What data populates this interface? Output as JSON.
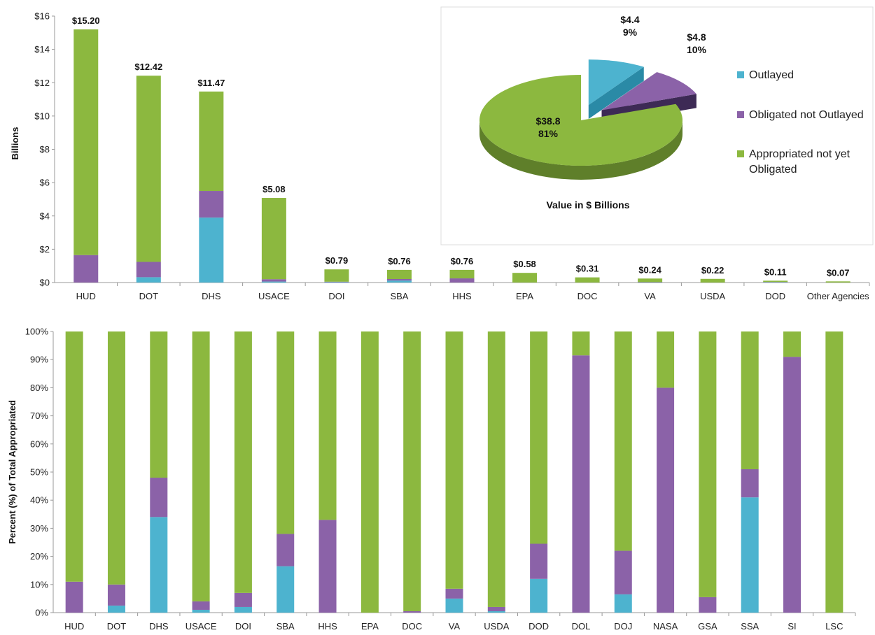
{
  "colors": {
    "outlayed": "#4db3cf",
    "obligated": "#8b62a8",
    "appropriated": "#8cb83f"
  },
  "chart_data": [
    {
      "type": "bar",
      "stacked": true,
      "ylabel": "Billions",
      "ylim": [
        0,
        16
      ],
      "yticks": [
        "$0",
        "$2",
        "$4",
        "$6",
        "$8",
        "$10",
        "$12",
        "$14",
        "$16"
      ],
      "categories": [
        "HUD",
        "DOT",
        "DHS",
        "USACE",
        "DOI",
        "SBA",
        "HHS",
        "EPA",
        "DOC",
        "VA",
        "USDA",
        "DOD",
        "Other Agencies"
      ],
      "totals_labels": [
        "$15.20",
        "$12.42",
        "$11.47",
        "$5.08",
        "$0.79",
        "$0.76",
        "$0.76",
        "$0.58",
        "$0.31",
        "$0.24",
        "$0.22",
        "$0.11",
        "$0.07"
      ],
      "series": [
        {
          "name": "Outlayed",
          "values": [
            0.0,
            0.32,
            3.9,
            0.06,
            0.02,
            0.12,
            0.0,
            0.0,
            0.0,
            0.01,
            0.0,
            0.01,
            0.0
          ]
        },
        {
          "name": "Obligated not Outlayed",
          "values": [
            1.65,
            0.92,
            1.6,
            0.14,
            0.03,
            0.09,
            0.25,
            0.0,
            0.0,
            0.01,
            0.0,
            0.02,
            0.0
          ]
        },
        {
          "name": "Appropriated not yet Obligated",
          "values": [
            13.55,
            11.18,
            5.97,
            4.88,
            0.74,
            0.55,
            0.51,
            0.58,
            0.31,
            0.22,
            0.22,
            0.08,
            0.07
          ]
        }
      ]
    },
    {
      "type": "pie",
      "title": "Value in $ Billions",
      "slices": [
        {
          "name": "Outlayed",
          "value": 4.4,
          "label": "$4.4",
          "pct": "9%"
        },
        {
          "name": "Obligated not Outlayed",
          "value": 4.8,
          "label": "$4.8",
          "pct": "10%"
        },
        {
          "name": "Appropriated not yet Obligated",
          "value": 38.8,
          "label": "$38.8",
          "pct": "81%"
        }
      ],
      "legend": [
        "Outlayed",
        "Obligated not Outlayed",
        "Appropriated not yet Obligated"
      ]
    },
    {
      "type": "bar",
      "stacked": true,
      "percent": true,
      "ylabel": "Percent (%) of Total Appropriated",
      "ylim": [
        0,
        100
      ],
      "yticks": [
        "0%",
        "10%",
        "20%",
        "30%",
        "40%",
        "50%",
        "60%",
        "70%",
        "80%",
        "90%",
        "100%"
      ],
      "categories": [
        "HUD",
        "DOT",
        "DHS",
        "USACE",
        "DOI",
        "SBA",
        "HHS",
        "EPA",
        "DOC",
        "VA",
        "USDA",
        "DOD",
        "DOL",
        "DOJ",
        "NASA",
        "GSA",
        "SSA",
        "SI",
        "LSC"
      ],
      "series": [
        {
          "name": "Outlayed",
          "values": [
            0,
            2.5,
            34,
            1,
            2,
            16.5,
            0,
            0,
            0,
            5,
            0.5,
            12,
            0,
            6.5,
            0,
            0,
            41,
            0,
            0
          ]
        },
        {
          "name": "Obligated not Outlayed",
          "values": [
            11,
            7.5,
            14,
            3,
            5,
            11.5,
            33,
            0,
            0.5,
            3.5,
            1.5,
            12.5,
            91.5,
            15.5,
            80,
            5.5,
            10,
            91,
            0
          ]
        },
        {
          "name": "Appropriated not yet Obligated",
          "values": [
            89,
            90,
            52,
            96,
            93,
            72,
            67,
            100,
            99.5,
            91.5,
            98,
            75.5,
            8.5,
            78,
            20,
            94.5,
            49,
            9,
            100
          ]
        }
      ]
    }
  ]
}
